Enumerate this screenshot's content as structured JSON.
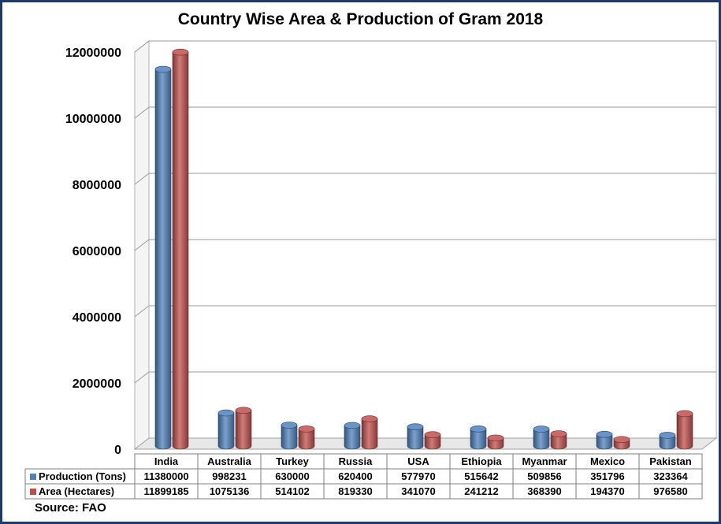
{
  "chart_data": {
    "type": "bar",
    "title": "Country Wise Area & Production of Gram 2018",
    "categories": [
      "India",
      "Australia",
      "Turkey",
      "Russia",
      "USA",
      "Ethiopia",
      "Myanmar",
      "Mexico",
      "Pakistan"
    ],
    "series": [
      {
        "name": "Production (Tons)",
        "color": "#4f81bd",
        "values": [
          11380000,
          998231,
          630000,
          620400,
          577970,
          515642,
          509856,
          351796,
          323364
        ]
      },
      {
        "name": "Area (Hectares)",
        "color": "#c0504d",
        "values": [
          11899185,
          1075136,
          514102,
          819330,
          341070,
          241212,
          368390,
          194370,
          976580
        ]
      }
    ],
    "y_ticks": [
      "0",
      "2000000",
      "4000000",
      "6000000",
      "8000000",
      "10000000",
      "12000000"
    ],
    "ylim": [
      0,
      12000000
    ],
    "grid": true,
    "legend": "data-table-below",
    "xlabel": "",
    "ylabel": ""
  },
  "footer": {
    "source": "Source: FAO"
  }
}
